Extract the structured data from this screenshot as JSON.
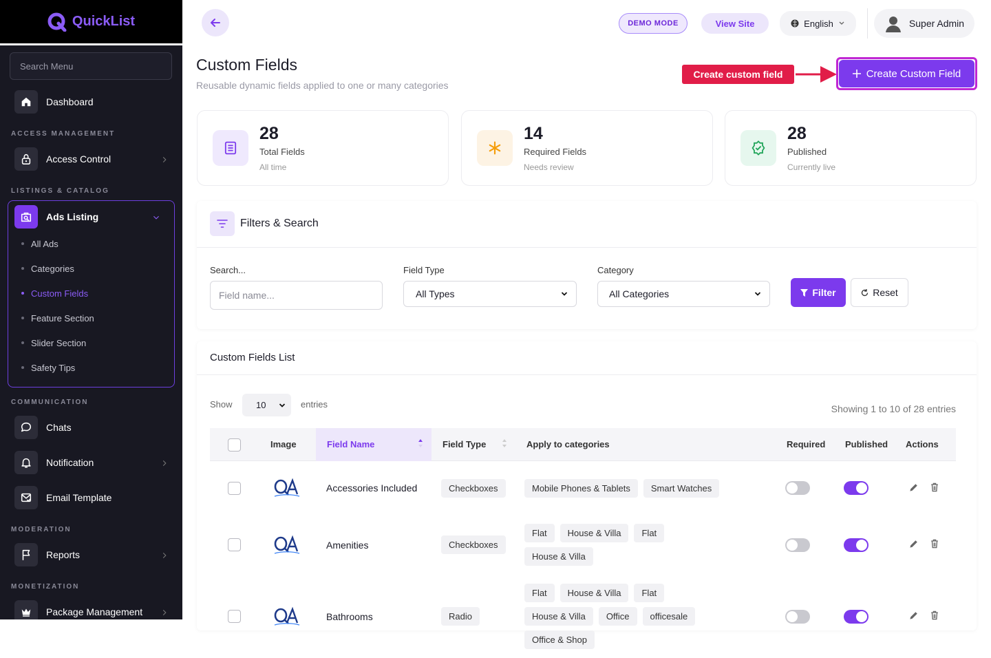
{
  "sidebar": {
    "brand": "QuickList",
    "search_placeholder": "Search Menu",
    "groups": [
      {
        "items": [
          {
            "label": "Dashboard",
            "arrow": false
          }
        ]
      },
      {
        "heading": "ACCESS MANAGEMENT",
        "items": [
          {
            "label": "Access Control",
            "arrow": true
          }
        ]
      },
      {
        "heading": "LISTINGS & CATALOG",
        "items": [
          {
            "label": "Ads Listing",
            "expanded": true,
            "children": [
              "All Ads",
              "Categories",
              "Custom Fields",
              "Feature Section",
              "Slider Section",
              "Safety Tips"
            ],
            "active_child": 2
          }
        ]
      },
      {
        "heading": "COMMUNICATION",
        "items": [
          {
            "label": "Chats",
            "arrow": false
          },
          {
            "label": "Notification",
            "arrow": true
          },
          {
            "label": "Email Template",
            "arrow": false
          }
        ]
      },
      {
        "heading": "MODERATION",
        "items": [
          {
            "label": "Reports",
            "arrow": true
          }
        ]
      },
      {
        "heading": "MONETIZATION",
        "items": [
          {
            "label": "Package Management",
            "arrow": true
          }
        ]
      }
    ]
  },
  "header": {
    "demo_mode": "DEMO MODE",
    "view_site": "View Site",
    "language": "English",
    "user": "Super Admin"
  },
  "page": {
    "title": "Custom Fields",
    "subtitle": "Reusable dynamic fields applied to one or many categories",
    "callout": "Create custom field",
    "create_button": "Create Custom Field"
  },
  "stats": [
    {
      "value": 28,
      "label": "Total Fields",
      "note": "All time"
    },
    {
      "value": 14,
      "label": "Required Fields",
      "note": "Needs review"
    },
    {
      "value": 28,
      "label": "Published",
      "note": "Currently live"
    }
  ],
  "filters": {
    "title": "Filters & Search",
    "search_label": "Search...",
    "search_placeholder": "Field name...",
    "field_type_label": "Field Type",
    "field_type_value": "All Types",
    "category_label": "Category",
    "category_value": "All Categories",
    "filter_button": "Filter",
    "reset_button": "Reset"
  },
  "list": {
    "title": "Custom Fields List",
    "show": "Show",
    "page_size": 10,
    "entries": "entries",
    "info": "Showing 1 to 10 of 28 entries",
    "columns": [
      "Image",
      "Field Name",
      "Field Type",
      "Apply to categories",
      "Required",
      "Published",
      "Actions"
    ],
    "rows": [
      {
        "name": "Accessories Included",
        "type": "Checkboxes",
        "categories": [
          "Mobile Phones & Tablets",
          "Smart Watches"
        ],
        "required": false,
        "published": true
      },
      {
        "name": "Amenities",
        "type": "Checkboxes",
        "categories": [
          "Flat",
          "House & Villa",
          "Flat",
          "House & Villa"
        ],
        "required": false,
        "published": true
      },
      {
        "name": "Bathrooms",
        "type": "Radio",
        "categories": [
          "Flat",
          "House & Villa",
          "Flat",
          "House & Villa",
          "Office",
          "officesale",
          "Office & Shop"
        ],
        "required": false,
        "published": true
      }
    ]
  }
}
